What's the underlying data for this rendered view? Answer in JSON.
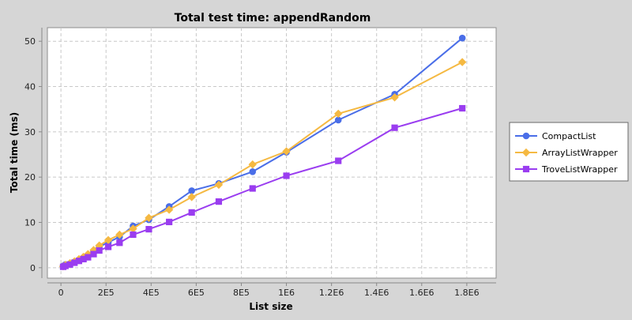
{
  "chart_data": {
    "type": "line",
    "title": "Total test time: appendRandom",
    "xlabel": "List size",
    "ylabel": "Total time (ms)",
    "xlim": [
      -60000,
      1930000
    ],
    "ylim": [
      -2.3,
      53
    ],
    "x_ticks": [
      {
        "value": 0,
        "label": "0"
      },
      {
        "value": 200000,
        "label": "2E5"
      },
      {
        "value": 400000,
        "label": "4E5"
      },
      {
        "value": 600000,
        "label": "6E5"
      },
      {
        "value": 800000,
        "label": "8E5"
      },
      {
        "value": 1000000,
        "label": "1E6"
      },
      {
        "value": 1200000,
        "label": "1.2E6"
      },
      {
        "value": 1400000,
        "label": "1.4E6"
      },
      {
        "value": 1600000,
        "label": "1.6E6"
      },
      {
        "value": 1800000,
        "label": "1.8E6"
      }
    ],
    "y_ticks": [
      {
        "value": 0,
        "label": "0"
      },
      {
        "value": 10,
        "label": "10"
      },
      {
        "value": 20,
        "label": "20"
      },
      {
        "value": 30,
        "label": "30"
      },
      {
        "value": 40,
        "label": "40"
      },
      {
        "value": 50,
        "label": "50"
      }
    ],
    "grid": true,
    "legend_position": "right",
    "series": [
      {
        "name": "CompactList",
        "color": "#4a6ee8",
        "marker": "circle",
        "points": [
          [
            10000,
            0.4
          ],
          [
            20000,
            0.7
          ],
          [
            40000,
            0.9
          ],
          [
            60000,
            1.3
          ],
          [
            80000,
            1.7
          ],
          [
            100000,
            2.2
          ],
          [
            120000,
            2.7
          ],
          [
            145000,
            3.7
          ],
          [
            170000,
            4.6
          ],
          [
            210000,
            5.6
          ],
          [
            260000,
            6.8
          ],
          [
            320000,
            9.2
          ],
          [
            390000,
            10.6
          ],
          [
            480000,
            13.5
          ],
          [
            580000,
            17.0
          ],
          [
            700000,
            18.6
          ],
          [
            850000,
            21.2
          ],
          [
            1000000,
            25.5
          ],
          [
            1230000,
            32.6
          ],
          [
            1480000,
            38.3
          ],
          [
            1780000,
            50.7
          ]
        ]
      },
      {
        "name": "ArrayListWrapper",
        "color": "#f5b942",
        "marker": "diamond",
        "points": [
          [
            10000,
            0.3
          ],
          [
            20000,
            0.6
          ],
          [
            40000,
            1.0
          ],
          [
            60000,
            1.4
          ],
          [
            80000,
            1.9
          ],
          [
            100000,
            2.4
          ],
          [
            120000,
            3.0
          ],
          [
            145000,
            3.9
          ],
          [
            170000,
            4.9
          ],
          [
            210000,
            6.1
          ],
          [
            260000,
            7.3
          ],
          [
            320000,
            8.6
          ],
          [
            390000,
            11.0
          ],
          [
            480000,
            12.8
          ],
          [
            580000,
            15.6
          ],
          [
            700000,
            18.3
          ],
          [
            850000,
            22.8
          ],
          [
            1000000,
            25.7
          ],
          [
            1230000,
            34.0
          ],
          [
            1480000,
            37.6
          ],
          [
            1780000,
            45.4
          ]
        ]
      },
      {
        "name": "TroveListWrapper",
        "color": "#9a3df0",
        "marker": "square",
        "points": [
          [
            10000,
            0.2
          ],
          [
            20000,
            0.4
          ],
          [
            40000,
            0.7
          ],
          [
            60000,
            1.1
          ],
          [
            80000,
            1.5
          ],
          [
            100000,
            1.9
          ],
          [
            120000,
            2.3
          ],
          [
            145000,
            3.0
          ],
          [
            170000,
            3.8
          ],
          [
            210000,
            4.6
          ],
          [
            260000,
            5.5
          ],
          [
            320000,
            7.3
          ],
          [
            390000,
            8.5
          ],
          [
            480000,
            10.1
          ],
          [
            580000,
            12.2
          ],
          [
            700000,
            14.6
          ],
          [
            850000,
            17.5
          ],
          [
            1000000,
            20.3
          ],
          [
            1230000,
            23.6
          ],
          [
            1480000,
            30.9
          ],
          [
            1780000,
            35.2
          ]
        ]
      }
    ]
  }
}
